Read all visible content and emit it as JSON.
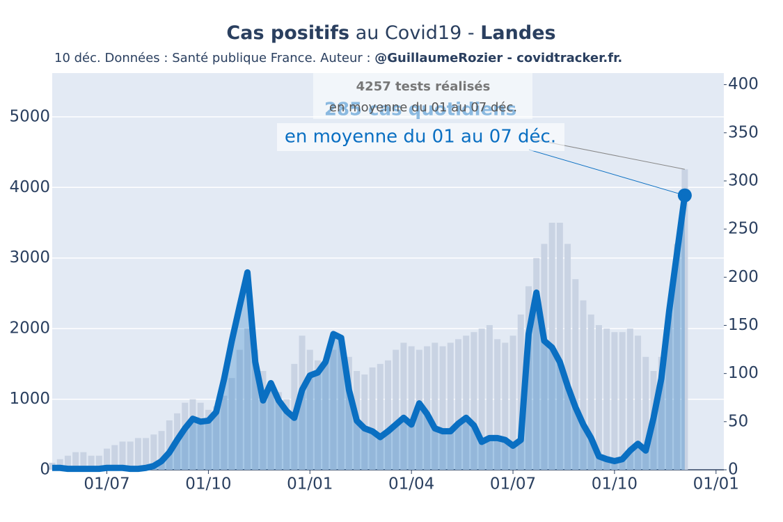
{
  "chart_data": {
    "type": "combo",
    "title": [
      "Cas positifs",
      "au Covid19 -",
      "Landes"
    ],
    "subtitle": [
      "10 déc. Données : Santé publique France. Auteur :",
      "@GuillaumeRozier - covidtracker.fr."
    ],
    "categories": [
      null,
      null,
      null,
      null,
      null,
      null,
      null,
      "01/07",
      null,
      null,
      null,
      null,
      null,
      null,
      null,
      null,
      null,
      null,
      null,
      null,
      "01/10",
      null,
      null,
      null,
      null,
      null,
      null,
      null,
      null,
      null,
      null,
      null,
      null,
      "01/01",
      null,
      null,
      null,
      null,
      null,
      null,
      null,
      null,
      null,
      null,
      null,
      null,
      "01/04",
      null,
      null,
      null,
      null,
      null,
      null,
      null,
      null,
      null,
      null,
      null,
      null,
      "01/07",
      null,
      null,
      null,
      null,
      null,
      null,
      null,
      null,
      null,
      null,
      null,
      null,
      "01/10",
      null,
      null,
      null,
      null,
      null,
      null,
      null,
      null,
      null,
      null,
      null,
      null,
      "01/01"
    ],
    "series": [
      {
        "type": "bar",
        "color": "#c9d3e3",
        "values": [
          100,
          150,
          200,
          250,
          250,
          200,
          200,
          300,
          350,
          400,
          400,
          450,
          450,
          500,
          550,
          700,
          800,
          950,
          1000,
          950,
          850,
          900,
          1050,
          1300,
          1700,
          2000,
          1700,
          1400,
          1200,
          1100,
          1000,
          1500,
          1900,
          1700,
          1550,
          1500,
          1700,
          1900,
          1600,
          1400,
          1350,
          1450,
          1500,
          1550,
          1700,
          1800,
          1750,
          1700,
          1750,
          1800,
          1750,
          1800,
          1850,
          1900,
          1950,
          2000,
          2050,
          1850,
          1800,
          1900,
          2200,
          2600,
          3000,
          3200,
          3500,
          3500,
          3200,
          2700,
          2400,
          2200,
          2050,
          2000,
          1950,
          1950,
          2000,
          1900,
          1600,
          1400,
          1600,
          2200,
          3200,
          4257,
          null,
          null,
          null,
          null
        ]
      },
      {
        "type": "line",
        "axis": "y2",
        "color": "#0a6fc2",
        "values": [
          2,
          2,
          1,
          1,
          1,
          1,
          1,
          2,
          2,
          2,
          1,
          1,
          2,
          4,
          9,
          18,
          31,
          43,
          53,
          50,
          51,
          60,
          94,
          134,
          170,
          205,
          112,
          72,
          90,
          72,
          61,
          54,
          83,
          98,
          101,
          112,
          141,
          137,
          83,
          51,
          43,
          40,
          34,
          40,
          47,
          54,
          47,
          69,
          58,
          43,
          40,
          40,
          48,
          54,
          46,
          29,
          33,
          33,
          31,
          25,
          31,
          141,
          184,
          134,
          127,
          112,
          87,
          65,
          47,
          33,
          14,
          11,
          9,
          11,
          20,
          27,
          20,
          54,
          95,
          165,
          225,
          285,
          null,
          null,
          null,
          null
        ]
      }
    ],
    "ylim": [
      0,
      5620
    ],
    "yticks": [
      0,
      1000,
      2000,
      3000,
      4000,
      5000
    ],
    "y2lim": [
      0,
      412
    ],
    "y2ticks": [
      0,
      50,
      100,
      150,
      200,
      250,
      300,
      350,
      400
    ],
    "grid": true,
    "annotations": [
      {
        "bold": "4257 tests réalisés",
        "text": "en moyenne du 01 au 07 déc."
      },
      {
        "bold": "285 cas quotidiens",
        "text": "en moyenne du 01 au 07 déc."
      }
    ]
  }
}
